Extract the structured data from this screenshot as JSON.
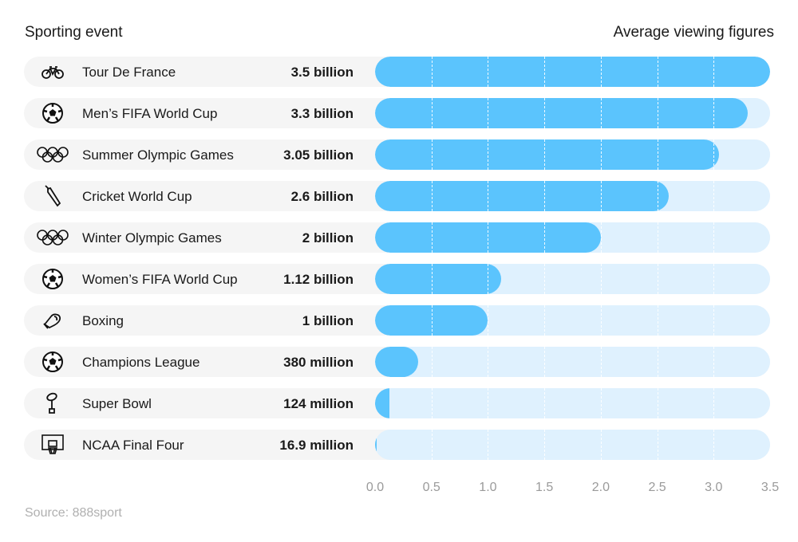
{
  "chart_data": {
    "type": "bar",
    "orientation": "horizontal",
    "column_headers": {
      "left": "Sporting event",
      "right": "Average viewing figures"
    },
    "categories": [
      "Tour De France",
      "Men’s FIFA World Cup",
      "Summer Olympic Games",
      "Cricket World Cup",
      "Winter Olympic Games",
      "Women’s FIFA World Cup",
      "Boxing",
      "Champions League",
      "Super Bowl",
      "NCAA Final Four"
    ],
    "icons": [
      "bicycle-icon",
      "football-icon",
      "olympic-rings-icon",
      "cricket-bat-icon",
      "olympic-rings-icon",
      "football-icon",
      "boxing-glove-icon",
      "football-icon",
      "trophy-icon",
      "basketball-hoop-icon"
    ],
    "values": [
      3.5,
      3.3,
      3.05,
      2.6,
      2.0,
      1.12,
      1.0,
      0.38,
      0.124,
      0.0169
    ],
    "value_labels": [
      "3.5 billion",
      "3.3 billion",
      "3.05 billion",
      "2.6 billion",
      "2 billion",
      "1.12 billion",
      "1 billion",
      "380 million",
      "124 million",
      "16.9 million"
    ],
    "unit": "billion viewers",
    "xlim": [
      0,
      3.5
    ],
    "xticks": [
      "0.0",
      "0.5",
      "1.0",
      "1.5",
      "2.0",
      "2.5",
      "3.0",
      "3.5"
    ],
    "grid": true,
    "colors": {
      "bar": "#5bc4fd",
      "track": "#dff1fe",
      "row": "#f5f5f5"
    }
  },
  "source": "Source: 888sport"
}
